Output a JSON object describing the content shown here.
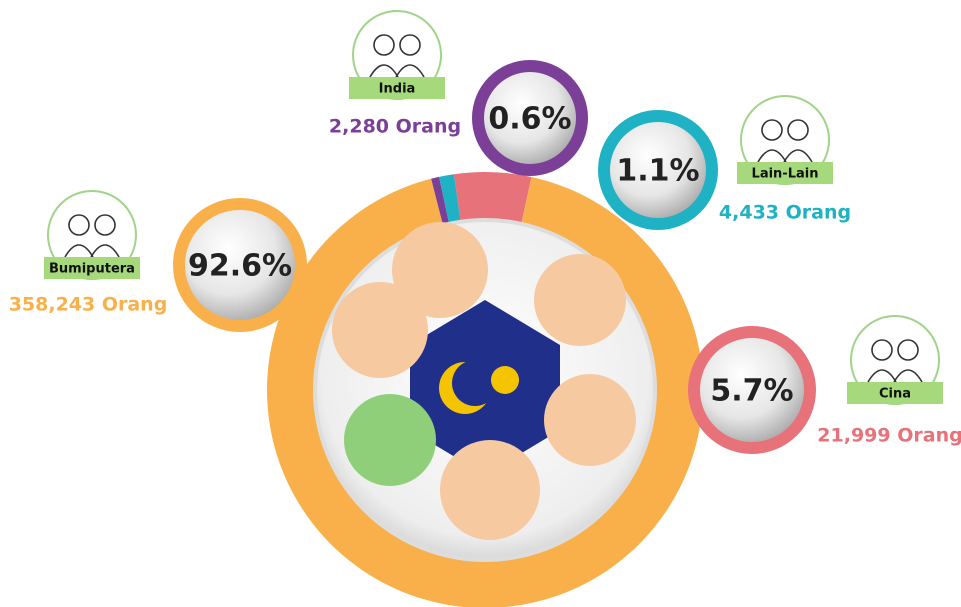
{
  "chart_data": {
    "type": "pie",
    "categories": [
      "Bumiputera",
      "India",
      "Lain-Lain",
      "Cina"
    ],
    "values": [
      92.6,
      0.6,
      1.1,
      5.7
    ],
    "value_labels": [
      "92.6%",
      "0.6%",
      "1.1%",
      "5.7%"
    ],
    "colors": [
      "#f9b04a",
      "#7b3f98",
      "#1fb1c4",
      "#e8727a"
    ],
    "annotations": [
      "358,243 Orang",
      "2,280 Orang",
      "4,433 Orang",
      "21,999 Orang"
    ]
  }
}
